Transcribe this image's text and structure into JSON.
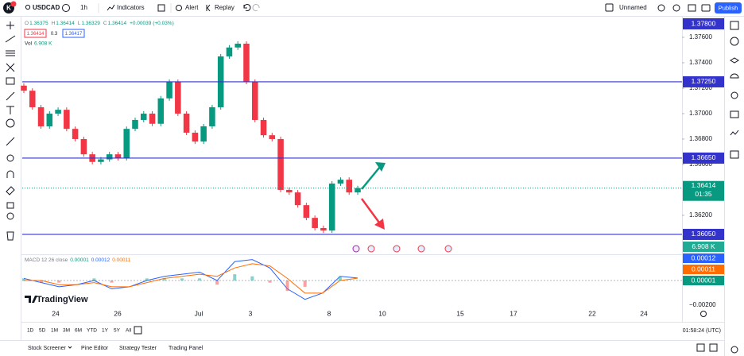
{
  "toolbar": {
    "logo_badge": "K",
    "symbol": "USDCAD",
    "interval": "1h",
    "indicators": "Indicators",
    "alert": "Alert",
    "replay": "Replay",
    "layout_name": "Unnamed",
    "publish": "Publish"
  },
  "legend": {
    "ohlc": [
      {
        "key": "O",
        "value": "1.36375"
      },
      {
        "key": "H",
        "value": "1.36414"
      },
      {
        "key": "L",
        "value": "1.36329"
      },
      {
        "key": "C",
        "value": "1.36414"
      }
    ],
    "change": "+0.00039 (+0.03%)",
    "sell": "1.36414",
    "spread": "0.3",
    "buy": "1.36417",
    "volume_key": "Vol",
    "volume": "6.908 K"
  },
  "chart_data": {
    "type": "candlestick",
    "first_open": 1.3722,
    "closes": [
      1.3718,
      1.3705,
      1.369,
      1.37,
      1.3703,
      1.3688,
      1.368,
      1.3668,
      1.3662,
      1.3664,
      1.3668,
      1.3665,
      1.3688,
      1.3695,
      1.37,
      1.3692,
      1.3712,
      1.3725,
      1.37,
      1.3685,
      1.3678,
      1.369,
      1.3705,
      1.3745,
      1.3752,
      1.3755,
      1.3725,
      1.3695,
      1.3683,
      1.368,
      1.364,
      1.3638,
      1.3628,
      1.3618,
      1.361,
      1.3608,
      1.3645,
      1.3648,
      1.3638,
      1.36414
    ],
    "up_color": "#089981",
    "down_color": "#f23645",
    "ylim": [
      1.35906,
      1.37756
    ],
    "yticks": [
      {
        "value": 1.376,
        "label": "1.37600"
      },
      {
        "value": 1.374,
        "label": "1.37400"
      },
      {
        "value": 1.372,
        "label": "1.37200"
      },
      {
        "value": 1.37,
        "label": "1.37000"
      },
      {
        "value": 1.368,
        "label": "1.36800"
      },
      {
        "value": 1.366,
        "label": "1.36600"
      },
      {
        "value": 1.362,
        "label": "1.36200"
      }
    ],
    "levels": [
      {
        "value": 1.378,
        "label": "1.37800"
      },
      {
        "value": 1.3725,
        "label": "1.37250"
      },
      {
        "value": 1.3665,
        "label": "1.36650"
      },
      {
        "value": 1.3605,
        "label": "1.36050"
      }
    ],
    "level_color": "#3333cc",
    "current": {
      "value": 1.36414,
      "label": "1.36414",
      "countdown": "01:35"
    },
    "xticks": [
      "24",
      "26",
      "Jul",
      "3",
      "8",
      "10",
      "15",
      "17",
      "22",
      "24"
    ],
    "macd": {
      "legend": "MACD 12 26 close",
      "legend_values": [
        "0.00001",
        "0.00012",
        "0.00011"
      ],
      "ylim": [
        -0.0011,
        0.0011
      ],
      "macd_line": [
        0.0001,
        -0.0001,
        -0.0003,
        -0.0002,
        0.0,
        -0.0004,
        -0.0003,
        0.0,
        0.0002,
        0.0003,
        0.0004,
        0.0,
        0.0009,
        0.001,
        0.0006,
        -0.0004,
        -0.0009,
        -0.0006,
        0.0002,
        0.00012
      ],
      "signal_line": [
        0.0,
        0.0,
        -0.0002,
        -0.0002,
        -0.0001,
        -0.0003,
        -0.0003,
        -0.0001,
        0.0001,
        0.0002,
        0.0003,
        0.0002,
        0.0006,
        0.0008,
        0.0007,
        0.0001,
        -0.0006,
        -0.0006,
        0.0,
        0.00011
      ],
      "macd_color": "#2962ff",
      "signal_color": "#ff6d00",
      "axis_labels": [
        {
          "value": 0.00012,
          "label": "0.00012",
          "color": "#2962ff"
        },
        {
          "value": 0.00011,
          "label": "0.00011",
          "color": "#ff6d00"
        },
        {
          "value": 1e-05,
          "label": "0.00001",
          "color": "#089981"
        }
      ],
      "bottom_tick": "−0.00200"
    },
    "watermark": "TradingView"
  },
  "range_bar": [
    "1D",
    "5D",
    "1M",
    "3M",
    "6M",
    "YTD",
    "1Y",
    "5Y",
    "All"
  ],
  "clock": "01:58:24 (UTC)",
  "bottom_tabs": [
    "Stock Screener",
    "Pine Editor",
    "Strategy Tester",
    "Trading Panel"
  ]
}
